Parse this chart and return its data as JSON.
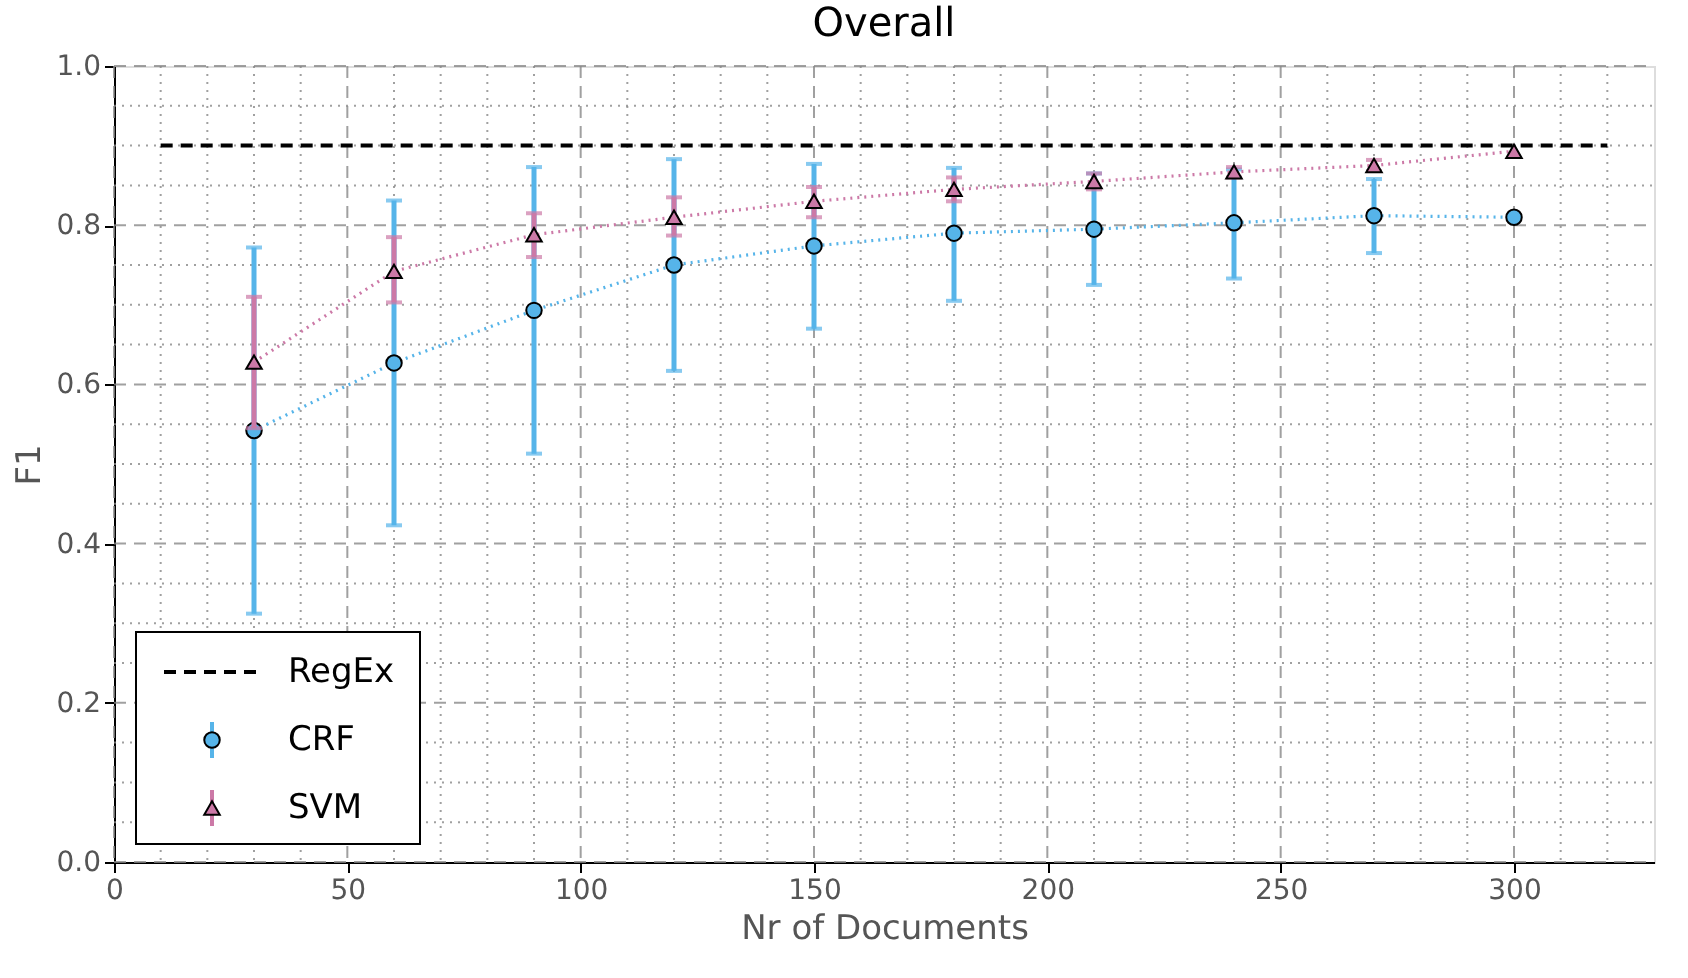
{
  "chart_data": {
    "type": "line",
    "title": "Overall",
    "xlabel": "Nr of Documents",
    "ylabel": "F1",
    "xlim": [
      0,
      330
    ],
    "ylim": [
      0,
      1
    ],
    "xticks": [
      0,
      {
        "value": 10,
        "label": null
      },
      {
        "value": 20,
        "label": null
      },
      {
        "value": 30,
        "label": null
      },
      {
        "value": 40,
        "label": null
      },
      50,
      {
        "value": 60,
        "label": null
      },
      {
        "value": 70,
        "label": null
      },
      {
        "value": 80,
        "label": null
      },
      {
        "value": 90,
        "label": null
      },
      100,
      {
        "value": 110,
        "label": null
      },
      {
        "value": 120,
        "label": null
      },
      {
        "value": 130,
        "label": null
      },
      {
        "value": 140,
        "label": null
      },
      150,
      {
        "value": 160,
        "label": null
      },
      {
        "value": 170,
        "label": null
      },
      {
        "value": 180,
        "label": null
      },
      {
        "value": 190,
        "label": null
      },
      200,
      {
        "value": 210,
        "label": null
      },
      {
        "value": 220,
        "label": null
      },
      {
        "value": 230,
        "label": null
      },
      {
        "value": 240,
        "label": null
      },
      250,
      {
        "value": 260,
        "label": null
      },
      {
        "value": 270,
        "label": null
      },
      {
        "value": 280,
        "label": null
      },
      {
        "value": 290,
        "label": null
      },
      300,
      {
        "value": 310,
        "label": null
      },
      {
        "value": 320,
        "label": null
      }
    ],
    "yticks": [
      {
        "value": 0,
        "label": "0.0"
      },
      {
        "value": 0.05,
        "label": null
      },
      {
        "value": 0.1,
        "label": null
      },
      {
        "value": 0.15,
        "label": null
      },
      {
        "value": 0.2,
        "label": "0.2"
      },
      {
        "value": 0.25,
        "label": null
      },
      {
        "value": 0.3,
        "label": null
      },
      {
        "value": 0.35,
        "label": null
      },
      {
        "value": 0.4,
        "label": "0.4"
      },
      {
        "value": 0.45,
        "label": null
      },
      {
        "value": 0.5,
        "label": null
      },
      {
        "value": 0.55,
        "label": null
      },
      {
        "value": 0.6,
        "label": "0.6"
      },
      {
        "value": 0.65,
        "label": null
      },
      {
        "value": 0.7,
        "label": null
      },
      {
        "value": 0.75,
        "label": null
      },
      {
        "value": 0.8,
        "label": "0.8"
      },
      {
        "value": 0.85,
        "label": null
      },
      {
        "value": 0.9,
        "label": null
      },
      {
        "value": 0.95,
        "label": null
      },
      {
        "value": 1,
        "label": "1.0"
      }
    ],
    "grid": true,
    "legend": "bottom left",
    "series": [
      {
        "name": "RegEx",
        "color": "#000000",
        "x": [
          10,
          320
        ],
        "values": [
          0.9,
          0.9
        ],
        "line_style": "dashed",
        "marker": "none"
      },
      {
        "name": "CRF",
        "color": "#56b4e9",
        "x": [
          30,
          60,
          90,
          120,
          150,
          180,
          210,
          240,
          270,
          300
        ],
        "values": [
          0.542,
          0.627,
          0.693,
          0.75,
          0.774,
          0.79,
          0.795,
          0.803,
          0.812,
          0.81
        ],
        "errors": [
          [
            0.312,
            0.772
          ],
          [
            0.423,
            0.831
          ],
          [
            0.513,
            0.873
          ],
          [
            0.617,
            0.883
          ],
          [
            0.67,
            0.877
          ],
          [
            0.705,
            0.872
          ],
          [
            0.725,
            0.865
          ],
          [
            0.733,
            0.87
          ],
          [
            0.765,
            0.858
          ],
          null
        ],
        "line_style": "dotted",
        "marker": "circle"
      },
      {
        "name": "SVM",
        "color": "#cc79a7",
        "x": [
          30,
          60,
          90,
          120,
          150,
          180,
          210,
          240,
          270,
          300
        ],
        "values": [
          0.628,
          0.742,
          0.788,
          0.81,
          0.83,
          0.845,
          0.855,
          0.867,
          0.875,
          0.893
        ],
        "errors": [
          [
            0.545,
            0.71
          ],
          [
            0.703,
            0.785
          ],
          [
            0.76,
            0.815
          ],
          [
            0.787,
            0.835
          ],
          [
            0.81,
            0.848
          ],
          [
            0.83,
            0.86
          ],
          [
            0.845,
            0.865
          ],
          [
            0.86,
            0.873
          ],
          [
            0.868,
            0.882
          ],
          null
        ],
        "line_style": "dotted",
        "marker": "triangle"
      }
    ]
  }
}
